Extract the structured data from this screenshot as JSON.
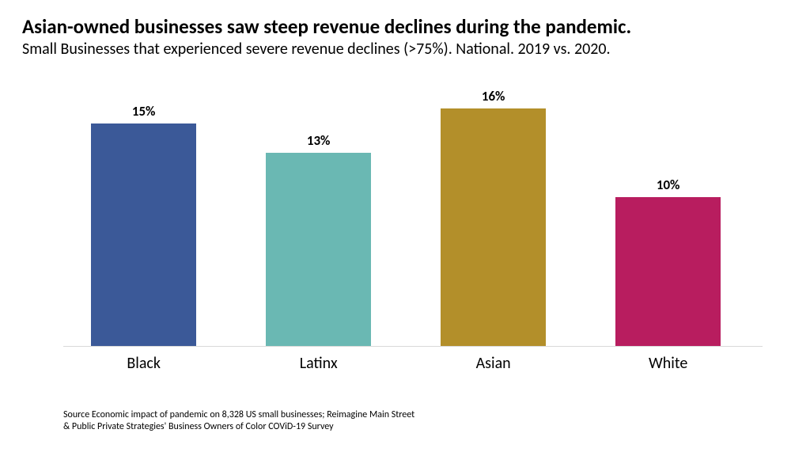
{
  "title": "Asian-owned businesses saw steep revenue declines during the pandemic.",
  "subtitle": "Small Businesses that experienced severe revenue declines (>75%). National. 2019 vs. 2020.",
  "title_fontsize": 25,
  "subtitle_fontsize": 20,
  "chart": {
    "type": "bar",
    "categories": [
      "Black",
      "Latinx",
      "Asian",
      "White"
    ],
    "values": [
      15,
      13,
      16,
      10
    ],
    "value_labels": [
      "15%",
      "13%",
      "16%",
      "10%"
    ],
    "bar_colors": [
      "#3b5998",
      "#6ab8b3",
      "#b38f2a",
      "#b81d5f"
    ],
    "ylim": [
      0,
      17
    ],
    "bar_width_pct": 15,
    "bar_gap_pct": 25,
    "bar_start_pct": 4,
    "value_label_fontsize": 17,
    "category_label_fontsize": 20,
    "baseline_color": "#d9d9d9",
    "background_color": "#ffffff"
  },
  "source_lines": [
    "Source Economic impact of pandemic on 8,328 US small businesses; Reimagine Main Street",
    "& Public Private Strategies' Business Owners of Color COViD-19 Survey"
  ],
  "source_fontsize": 12
}
